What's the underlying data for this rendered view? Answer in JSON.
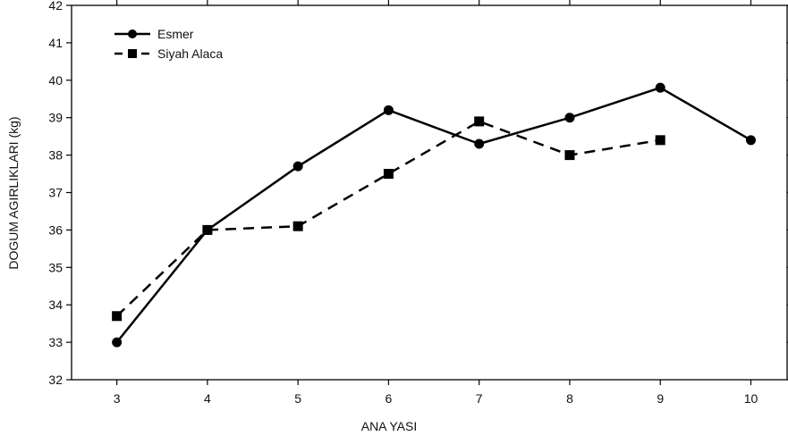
{
  "chart_data": {
    "type": "line",
    "title": "",
    "xlabel": "ANA YASI",
    "ylabel": "DOGUM AGIRLIKLARI (kg)",
    "xlim": [
      2.5,
      10.4
    ],
    "ylim": [
      32,
      42
    ],
    "x_ticks": [
      3,
      4,
      5,
      6,
      7,
      8,
      9,
      10
    ],
    "y_ticks": [
      32,
      33,
      34,
      35,
      36,
      37,
      38,
      39,
      40,
      41,
      42
    ],
    "grid": false,
    "legend_position": "top-left",
    "series": [
      {
        "name": "Esmer",
        "marker": "circle",
        "line_style": "solid",
        "color": "#000000",
        "x": [
          3,
          4,
          5,
          6,
          7,
          8,
          9,
          10
        ],
        "values": [
          33.0,
          36.0,
          37.7,
          39.2,
          38.3,
          39.0,
          39.8,
          38.4
        ]
      },
      {
        "name": "Siyah Alaca",
        "marker": "square",
        "line_style": "dashed",
        "color": "#000000",
        "x": [
          3,
          4,
          5,
          6,
          7,
          8,
          9
        ],
        "values": [
          33.7,
          36.0,
          36.1,
          37.5,
          38.9,
          38.0,
          38.4
        ]
      }
    ]
  }
}
